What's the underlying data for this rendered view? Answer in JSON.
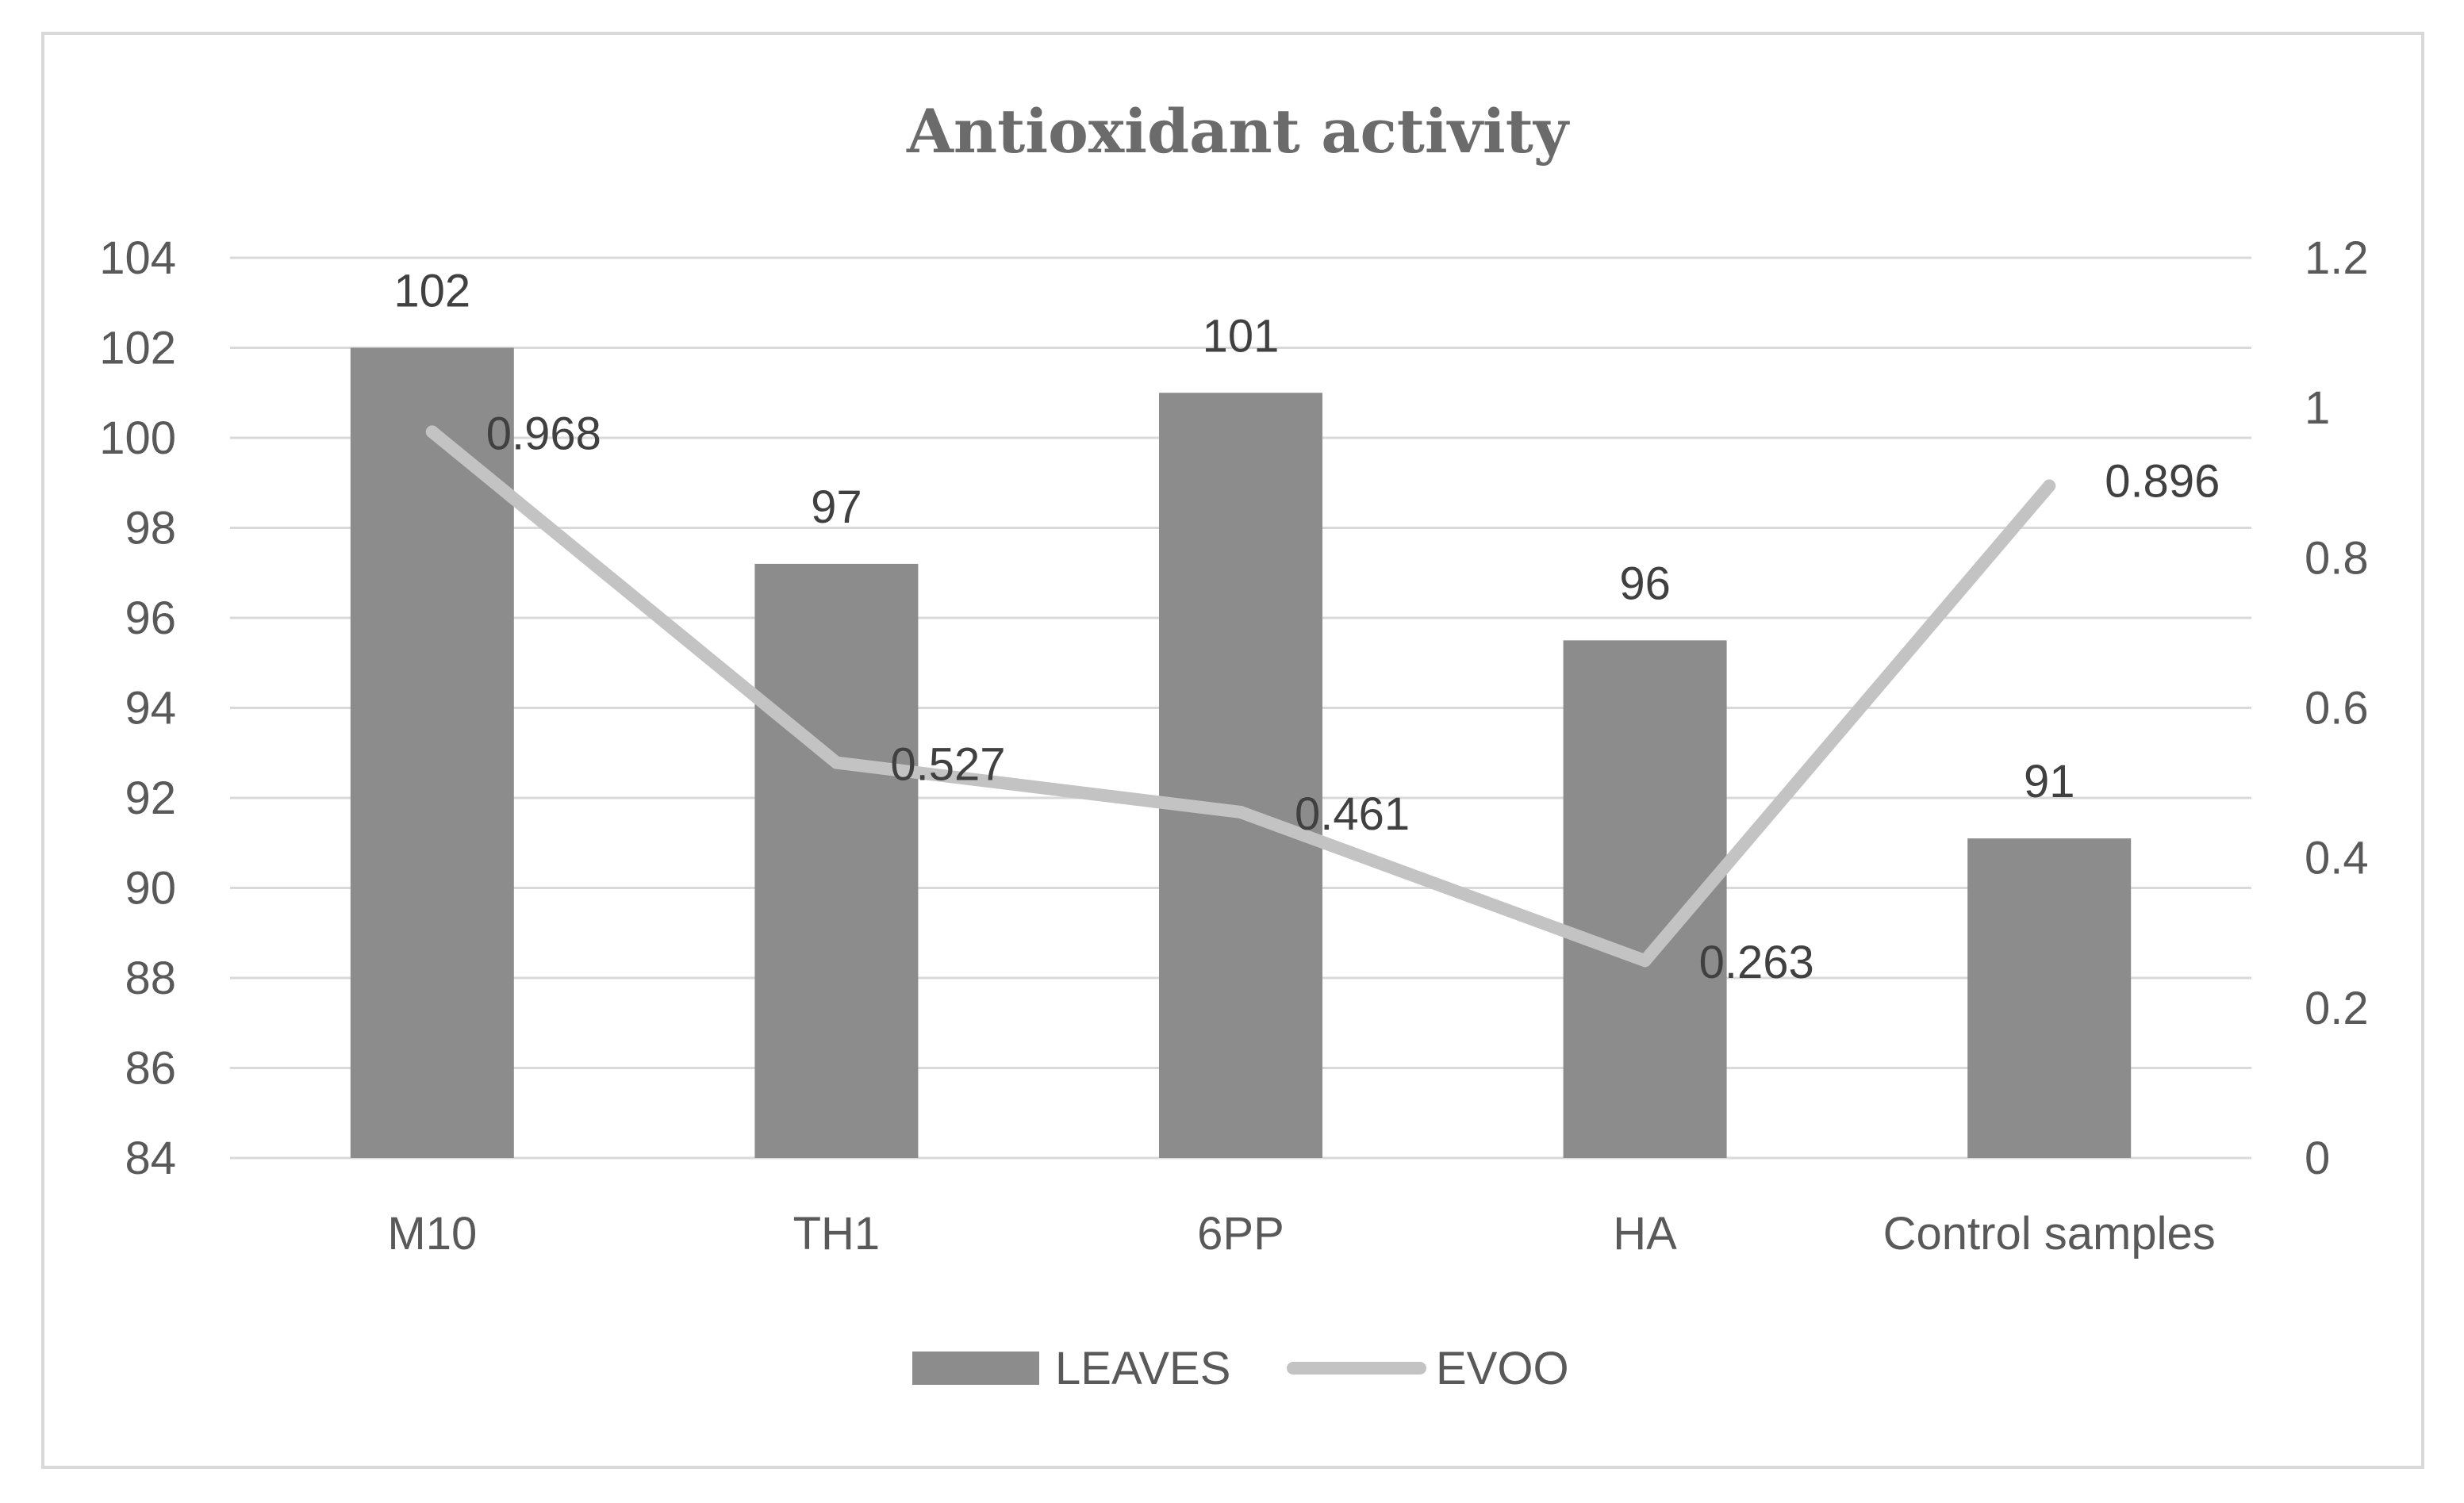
{
  "chart_data": {
    "type": "bar+line",
    "title": "Antioxidant activity",
    "categories": [
      "M10",
      "TH1",
      "6PP",
      "HA",
      "Control samples"
    ],
    "series": [
      {
        "name": "LEAVES",
        "type": "bar",
        "axis": "left",
        "values": [
          102,
          97.2,
          101,
          95.5,
          91.1
        ],
        "labels": [
          "102",
          "97",
          "101",
          "96",
          "91"
        ],
        "color": "#8c8c8c"
      },
      {
        "name": "EVOO",
        "type": "line",
        "axis": "right",
        "values": [
          0.968,
          0.527,
          0.461,
          0.263,
          0.896
        ],
        "labels": [
          "0.968",
          "0.527",
          "0.461",
          "0.263",
          "0.896"
        ],
        "color": "#c3c3c3"
      }
    ],
    "y_left": {
      "min": 84,
      "max": 104,
      "ticks": [
        84,
        86,
        88,
        90,
        92,
        94,
        96,
        98,
        100,
        102,
        104
      ],
      "tick_labels": [
        "84",
        "86",
        "88",
        "90",
        "92",
        "94",
        "96",
        "98",
        "100",
        "102",
        "104"
      ]
    },
    "y_right": {
      "min": 0,
      "max": 1.2,
      "ticks": [
        0,
        0.2,
        0.4,
        0.6,
        0.8,
        1.0,
        1.2
      ],
      "tick_labels": [
        "0",
        "0.2",
        "0.4",
        "0.6",
        "0.8",
        "1",
        "1.2"
      ]
    },
    "grid": true,
    "legend": "bottom-center",
    "gridline_color": "#d9d9d9",
    "frame_color": "#d9d9d9"
  }
}
